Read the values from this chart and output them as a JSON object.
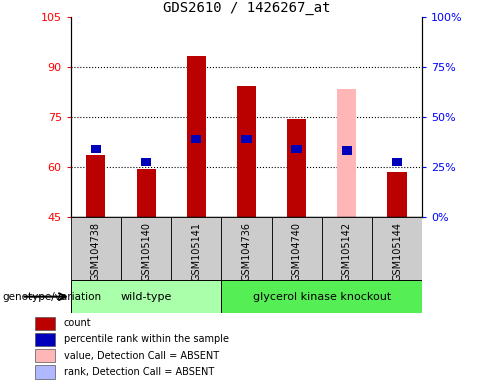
{
  "title": "GDS2610 / 1426267_at",
  "samples": [
    "GSM104738",
    "GSM105140",
    "GSM105141",
    "GSM104736",
    "GSM104740",
    "GSM105142",
    "GSM105144"
  ],
  "count_values": [
    63.5,
    59.5,
    93.5,
    84.5,
    74.5,
    45,
    58.5
  ],
  "rank_values": [
    65.5,
    61.5,
    68.5,
    68.5,
    65.5,
    65,
    61.5
  ],
  "absent_value": 83.5,
  "absent_rank": 65.0,
  "absent_index": 5,
  "base": 45,
  "ylim_left": [
    45,
    105
  ],
  "ylim_right": [
    0,
    100
  ],
  "yticks_left": [
    45,
    60,
    75,
    90,
    105
  ],
  "yticks_right": [
    0,
    25,
    50,
    75,
    100
  ],
  "grid_lines": [
    60,
    75,
    90
  ],
  "red_color": "#bb0000",
  "blue_color": "#0000bb",
  "pink_color": "#ffb6b6",
  "light_blue_color": "#b0b8ff",
  "wt_color": "#aaffaa",
  "ko_color": "#55ee55",
  "gray_color": "#cccccc",
  "groups": [
    {
      "label": "wild-type",
      "start": 0,
      "end": 3,
      "color": "#aaffaa"
    },
    {
      "label": "glycerol kinase knockout",
      "start": 3,
      "end": 7,
      "color": "#55ee55"
    }
  ],
  "genotype_label": "genotype/variation",
  "legend_items": [
    {
      "label": "count",
      "color": "#bb0000"
    },
    {
      "label": "percentile rank within the sample",
      "color": "#0000bb"
    },
    {
      "label": "value, Detection Call = ABSENT",
      "color": "#ffb6b6"
    },
    {
      "label": "rank, Detection Call = ABSENT",
      "color": "#b0b8ff"
    }
  ]
}
